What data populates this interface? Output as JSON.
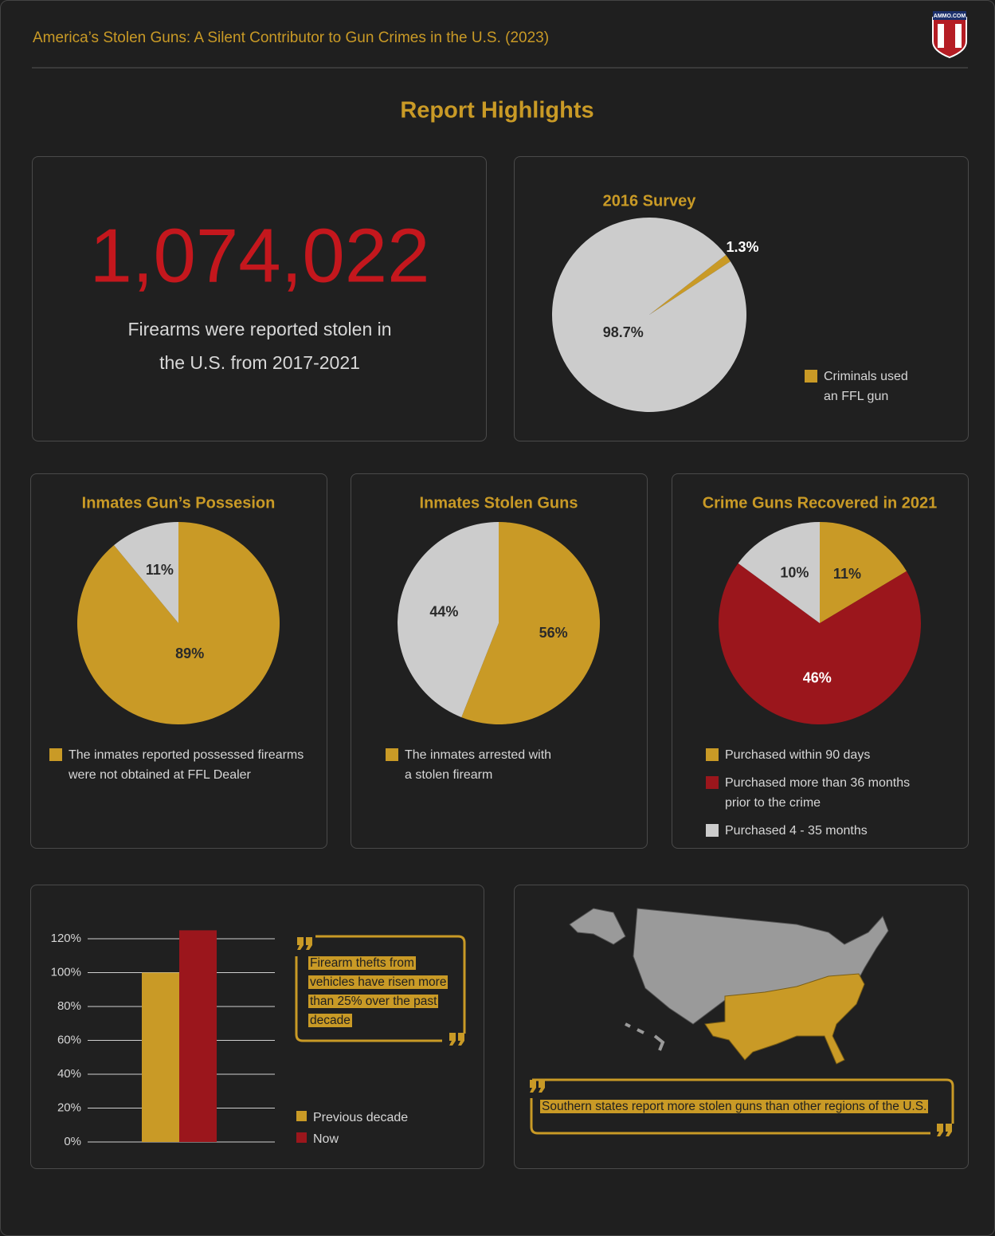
{
  "header": {
    "title": "America’s Stolen Guns: A Silent Contributor to Gun Crimes in the U.S. (2023)",
    "logo": "AMMO.COM"
  },
  "section_title": "Report Highlights",
  "stat": {
    "value": "1,074,022",
    "caption": "Firearms were reported stolen in the U.S. from 2017-2021"
  },
  "chart_data": [
    {
      "type": "pie",
      "title": "2016 Survey",
      "categories": [
        "Criminals used an FFL gun",
        null
      ],
      "values": [
        1.3,
        98.7
      ],
      "value_labels": [
        "1.3%",
        "98.7%"
      ],
      "colors": [
        "#c99a26",
        "#cccccc"
      ]
    },
    {
      "type": "pie",
      "title": "Inmates Gun’s Possesion",
      "categories": [
        "The inmates reported possessed firearms were not obtained at FFL Dealer",
        null
      ],
      "values": [
        89,
        11
      ],
      "value_labels": [
        "89%",
        "11%"
      ],
      "colors": [
        "#c99a26",
        "#cccccc"
      ]
    },
    {
      "type": "pie",
      "title": "Inmates Stolen Guns",
      "categories": [
        "The inmates arrested with a stolen firearm",
        null
      ],
      "values": [
        56,
        44
      ],
      "value_labels": [
        "56%",
        "44%"
      ],
      "colors": [
        "#c99a26",
        "#cccccc"
      ]
    },
    {
      "type": "pie",
      "title": "Crime Guns Recovered in 2021",
      "categories": [
        "Purchased within 90 days",
        "Purchased more than 36 months prior to the crime",
        "Purchased 4 - 35 months"
      ],
      "values": [
        11,
        46,
        10
      ],
      "value_labels": [
        "11%",
        "46%",
        "10%"
      ],
      "colors": [
        "#c99a26",
        "#9b161c",
        "#cccccc"
      ]
    },
    {
      "type": "bar",
      "series": [
        {
          "name": "Previous decade",
          "color": "#c99a26",
          "values": [
            100
          ]
        },
        {
          "name": "Now",
          "color": "#9b161c",
          "values": [
            125
          ]
        }
      ],
      "ylim": [
        0,
        125
      ],
      "yticks": [
        {
          "value": 0,
          "label": "0%"
        },
        {
          "value": 20,
          "label": "20%"
        },
        {
          "value": 40,
          "label": "40%"
        },
        {
          "value": 60,
          "label": "60%"
        },
        {
          "value": 80,
          "label": "80%"
        },
        {
          "value": 100,
          "label": "100%"
        },
        {
          "value": 120,
          "label": "120%"
        }
      ],
      "grid": true,
      "annotation": "Firearm thefts from vehicles have risen more than 25% over the past decade"
    }
  ],
  "map": {
    "note": "Southern states report more stolen guns than other regions of the U.S."
  }
}
